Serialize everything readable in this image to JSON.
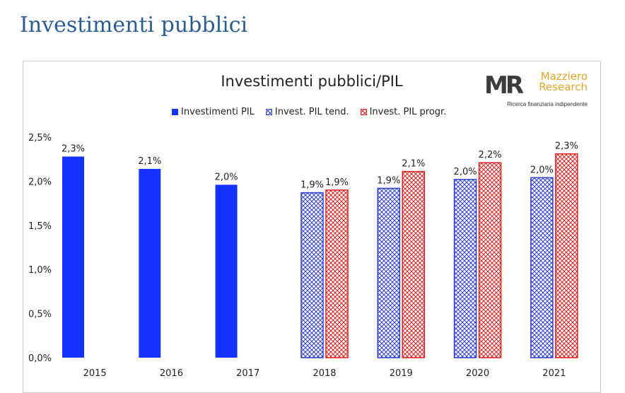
{
  "page": {
    "heading": "Investimenti pubblici"
  },
  "logo": {
    "mark": "MR",
    "name_line1": "Mazziero",
    "name_line2": "Research",
    "tagline": "Ricerca finanziaria indipendente"
  },
  "colors": {
    "solid": "#1433ff",
    "tend": "#2b3fd6",
    "progr": "#e01f1f",
    "text": "#222222"
  },
  "chart_data": {
    "type": "bar",
    "title": "Investimenti pubblici/PIL",
    "categories": [
      "2015",
      "2016",
      "2017",
      "2018",
      "2019",
      "2020",
      "2021"
    ],
    "series": [
      {
        "name": "Investimenti PIL",
        "style": "solid",
        "values": [
          2.28,
          2.14,
          1.96,
          null,
          null,
          null,
          null
        ],
        "labels": [
          "2,3%",
          "2,1%",
          "2,0%",
          "",
          "",
          "",
          ""
        ]
      },
      {
        "name": "Invest. PIL tend.",
        "style": "hatch-blue",
        "values": [
          null,
          null,
          null,
          1.87,
          1.92,
          2.02,
          2.04
        ],
        "labels": [
          "",
          "",
          "",
          "1,9%",
          "1,9%",
          "2,0%",
          "2,0%"
        ]
      },
      {
        "name": "Invest. PIL progr.",
        "style": "hatch-red",
        "values": [
          null,
          null,
          null,
          1.9,
          2.11,
          2.21,
          2.31
        ],
        "labels": [
          "",
          "",
          "",
          "1,9%",
          "2,1%",
          "2,2%",
          "2,3%"
        ]
      }
    ],
    "y_ticks": [
      "0,0%",
      "0,5%",
      "1,0%",
      "1,5%",
      "2,0%",
      "2,5%"
    ],
    "ylim": [
      0,
      2.5
    ],
    "grid": false,
    "legend_position": "top"
  }
}
